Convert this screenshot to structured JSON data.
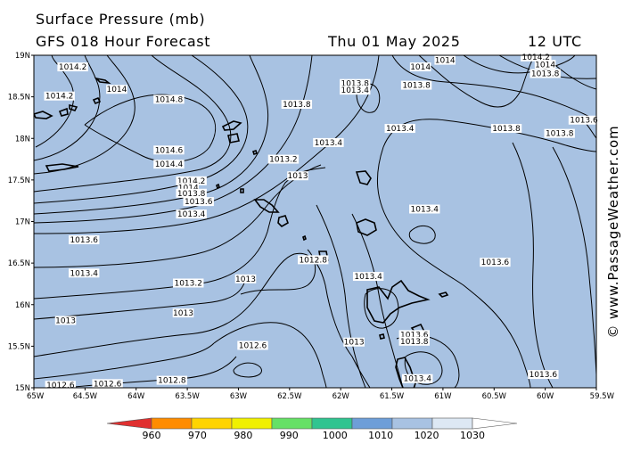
{
  "header": {
    "title": "Surface Pressure (mb)",
    "forecast": "GFS 018 Hour Forecast",
    "date": "Thu 01 May 2025",
    "time": "12 UTC"
  },
  "watermark": "© www.PassageWeather.com",
  "map": {
    "background_color": "#a8c2e2",
    "lat_labels": [
      "19N",
      "18.5N",
      "18N",
      "17.5N",
      "17N",
      "16.5N",
      "16N",
      "15.5N",
      "15N"
    ],
    "lon_labels": [
      "65W",
      "64.5W",
      "64W",
      "63.5W",
      "63W",
      "62.5W",
      "62W",
      "61.5W",
      "61W",
      "60.5W",
      "60W",
      "59.5W"
    ],
    "contour_labels": [
      {
        "text": "1014.2",
        "lon": -64.62,
        "lat": 18.86
      },
      {
        "text": "1014",
        "lon": -64.19,
        "lat": 18.59
      },
      {
        "text": "1014.2",
        "lon": -64.75,
        "lat": 18.51
      },
      {
        "text": "1014.8",
        "lon": -63.68,
        "lat": 18.47
      },
      {
        "text": "1014.6",
        "lon": -63.68,
        "lat": 17.86
      },
      {
        "text": "1014.4",
        "lon": -63.68,
        "lat": 17.69
      },
      {
        "text": "1014.2",
        "lon": -63.46,
        "lat": 17.49
      },
      {
        "text": "1014",
        "lon": -63.49,
        "lat": 17.41
      },
      {
        "text": "1013.8",
        "lon": -63.46,
        "lat": 17.34
      },
      {
        "text": "1013.6",
        "lon": -63.39,
        "lat": 17.24
      },
      {
        "text": "1013.4",
        "lon": -63.46,
        "lat": 17.09
      },
      {
        "text": "1013.8",
        "lon": -62.43,
        "lat": 18.41
      },
      {
        "text": "1013.4",
        "lon": -62.12,
        "lat": 17.95
      },
      {
        "text": "1013.2",
        "lon": -62.56,
        "lat": 17.75
      },
      {
        "text": "1013",
        "lon": -62.42,
        "lat": 17.55
      },
      {
        "text": "1013.6",
        "lon": -64.51,
        "lat": 16.78
      },
      {
        "text": "1013.4",
        "lon": -64.51,
        "lat": 16.38
      },
      {
        "text": "1013.2",
        "lon": -63.49,
        "lat": 16.26
      },
      {
        "text": "1013",
        "lon": -62.93,
        "lat": 16.31
      },
      {
        "text": "1012.8",
        "lon": -62.27,
        "lat": 16.54
      },
      {
        "text": "1013",
        "lon": -64.69,
        "lat": 15.81
      },
      {
        "text": "1013",
        "lon": -63.54,
        "lat": 15.9
      },
      {
        "text": "1012.6",
        "lon": -62.86,
        "lat": 15.51
      },
      {
        "text": "1012.8",
        "lon": -63.65,
        "lat": 15.09
      },
      {
        "text": "1012.6",
        "lon": -64.74,
        "lat": 15.03
      },
      {
        "text": "1012.6",
        "lon": -64.28,
        "lat": 15.05
      },
      {
        "text": "1013",
        "lon": -61.87,
        "lat": 15.55
      },
      {
        "text": "1013.8",
        "lon": -61.86,
        "lat": 18.66
      },
      {
        "text": "1013.4",
        "lon": -61.86,
        "lat": 18.58
      },
      {
        "text": "1014",
        "lon": -61.22,
        "lat": 18.86
      },
      {
        "text": "1014",
        "lon": -60.98,
        "lat": 18.94
      },
      {
        "text": "1013.8",
        "lon": -61.26,
        "lat": 18.64
      },
      {
        "text": "1013.4",
        "lon": -61.42,
        "lat": 18.12
      },
      {
        "text": "1013.4",
        "lon": -61.18,
        "lat": 17.15
      },
      {
        "text": "1013.4",
        "lon": -61.73,
        "lat": 16.34
      },
      {
        "text": "1013.8",
        "lon": -60.38,
        "lat": 18.12
      },
      {
        "text": "1013.8",
        "lon": -59.86,
        "lat": 18.06
      },
      {
        "text": "1013.6",
        "lon": -60.49,
        "lat": 16.51
      },
      {
        "text": "1014.2",
        "lon": -60.09,
        "lat": 18.98
      },
      {
        "text": "1014",
        "lon": -60.0,
        "lat": 18.89
      },
      {
        "text": "1013.8",
        "lon": -60.0,
        "lat": 18.78
      },
      {
        "text": "1013.6",
        "lon": -61.28,
        "lat": 15.64
      },
      {
        "text": "1013.8",
        "lon": -61.28,
        "lat": 15.56
      },
      {
        "text": "1013.4",
        "lon": -61.25,
        "lat": 15.11
      },
      {
        "text": "1013.6",
        "lon": -60.02,
        "lat": 15.16
      },
      {
        "text": "1013.6",
        "lon": -59.6,
        "lat": 18.22
      }
    ]
  },
  "legend": {
    "ticks": [
      "960",
      "970",
      "980",
      "990",
      "1000",
      "1010",
      "1020",
      "1030"
    ],
    "colors": [
      "#e03030",
      "#ff8c00",
      "#ffd400",
      "#f0f000",
      "#66e066",
      "#30c490",
      "#6e9ed8",
      "#a8c2e2",
      "#dde8f4",
      "#ffffff"
    ]
  }
}
